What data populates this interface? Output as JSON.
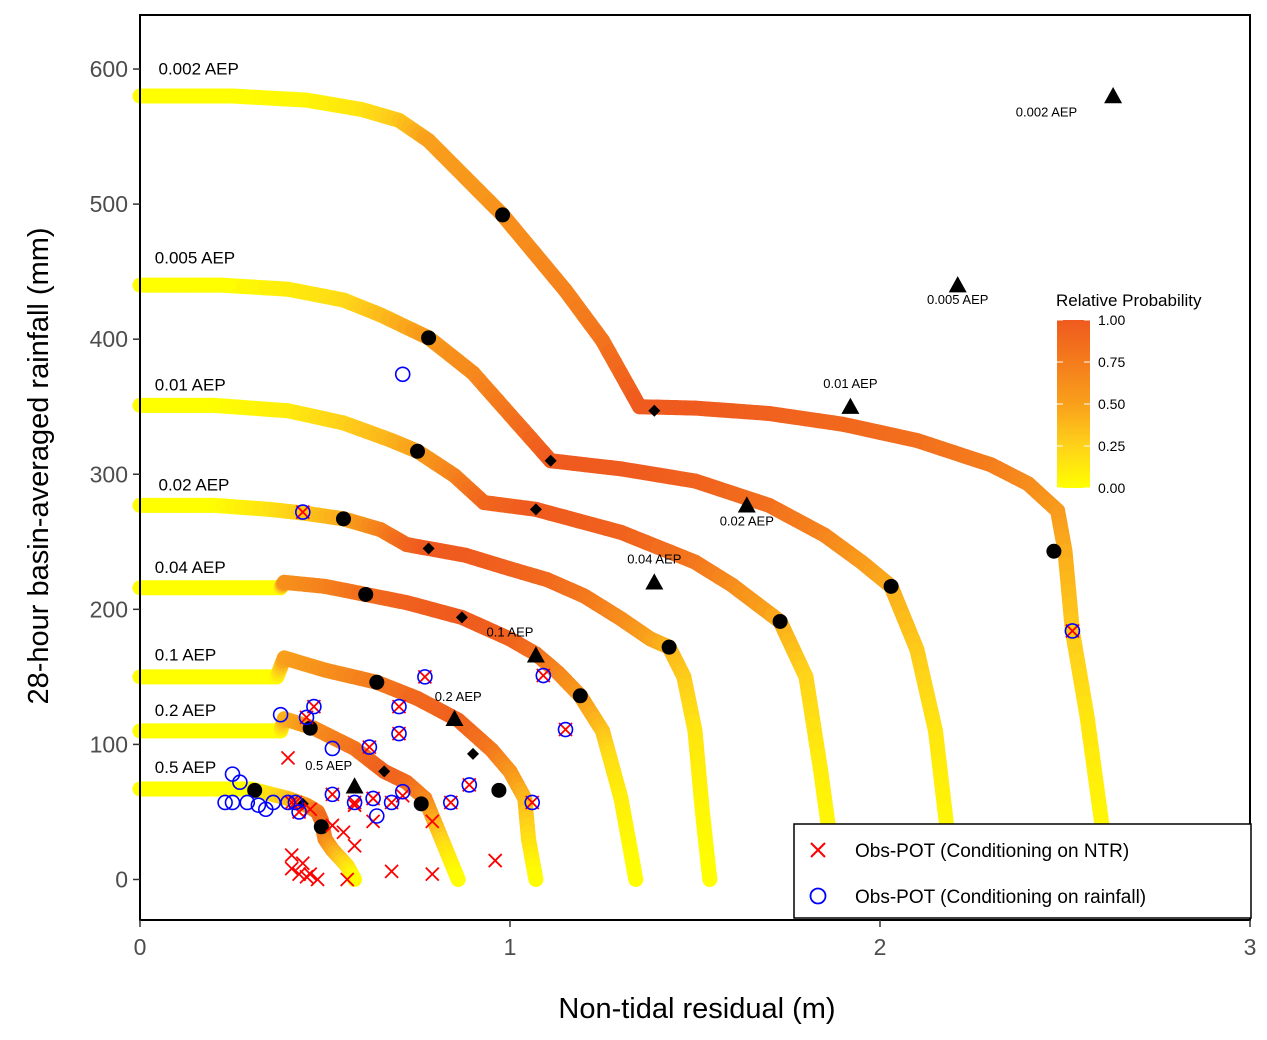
{
  "chart_data": {
    "type": "scatter",
    "xlabel": "Non-tidal residual (m)",
    "ylabel": "28-hour basin-averaged rainfall (mm)",
    "xlim": [
      0,
      3
    ],
    "ylim": [
      -30,
      640
    ],
    "xticks": [
      0,
      1,
      2,
      3
    ],
    "xtick_labels": [
      "0",
      "1",
      "2",
      "3"
    ],
    "yticks": [
      0,
      100,
      200,
      300,
      400,
      500,
      600
    ],
    "ytick_labels": [
      "0",
      "100",
      "200",
      "300",
      "400",
      "500",
      "600"
    ],
    "grid": false,
    "colorbar": {
      "title": "Relative Probability",
      "ticks": [
        0,
        0.25,
        0.5,
        0.75,
        1.0
      ],
      "tick_labels": [
        "0.00",
        "0.25",
        "0.50",
        "0.75",
        "1.00"
      ],
      "colors": [
        "#ffff00",
        "#ffd21a",
        "#f9a01b",
        "#f47c1c",
        "#ef5a1e"
      ]
    },
    "curves": [
      {
        "label": "0.002 AEP",
        "label_pos": [
          0.05,
          596
        ],
        "points": [
          [
            0,
            580
          ],
          [
            0.25,
            580
          ],
          [
            0.45,
            577
          ],
          [
            0.6,
            570
          ],
          [
            0.7,
            562
          ],
          [
            0.78,
            547
          ],
          [
            0.98,
            492
          ],
          [
            1.15,
            436
          ],
          [
            1.25,
            399
          ],
          [
            1.35,
            350
          ],
          [
            1.5,
            349
          ],
          [
            1.7,
            345
          ],
          [
            1.9,
            337
          ],
          [
            2.1,
            325
          ],
          [
            2.3,
            307
          ],
          [
            2.4,
            293
          ],
          [
            2.48,
            273
          ],
          [
            2.5,
            243
          ],
          [
            2.52,
            184
          ],
          [
            2.56,
            120
          ],
          [
            2.6,
            40
          ],
          [
            2.62,
            0
          ]
        ],
        "probs": [
          0,
          0,
          0.05,
          0.15,
          0.3,
          0.5,
          0.6,
          0.7,
          0.8,
          1,
          1,
          0.95,
          0.9,
          0.85,
          0.75,
          0.65,
          0.55,
          0.45,
          0.3,
          0.15,
          0.05,
          0
        ]
      },
      {
        "label": "0.005 AEP",
        "label_pos": [
          0.04,
          456
        ],
        "points": [
          [
            0,
            440
          ],
          [
            0.22,
            440
          ],
          [
            0.4,
            437
          ],
          [
            0.55,
            429
          ],
          [
            0.65,
            418
          ],
          [
            0.78,
            401
          ],
          [
            0.9,
            375
          ],
          [
            1.0,
            344
          ],
          [
            1.11,
            310
          ],
          [
            1.3,
            304
          ],
          [
            1.5,
            295
          ],
          [
            1.7,
            277
          ],
          [
            1.85,
            255
          ],
          [
            1.95,
            235
          ],
          [
            2.03,
            217
          ],
          [
            2.1,
            170
          ],
          [
            2.15,
            110
          ],
          [
            2.18,
            40
          ],
          [
            2.2,
            10
          ]
        ],
        "probs": [
          0,
          0,
          0.1,
          0.2,
          0.35,
          0.55,
          0.65,
          0.8,
          1,
          1,
          0.95,
          0.85,
          0.7,
          0.55,
          0.45,
          0.3,
          0.15,
          0.05,
          0
        ]
      },
      {
        "label": "0.01 AEP",
        "label_pos": [
          0.04,
          362
        ],
        "points": [
          [
            0,
            351
          ],
          [
            0.2,
            351
          ],
          [
            0.4,
            347
          ],
          [
            0.55,
            338
          ],
          [
            0.68,
            325
          ],
          [
            0.75,
            317
          ],
          [
            0.85,
            299
          ],
          [
            0.93,
            279
          ],
          [
            1.07,
            274
          ],
          [
            1.3,
            257
          ],
          [
            1.5,
            235
          ],
          [
            1.6,
            218
          ],
          [
            1.73,
            191
          ],
          [
            1.8,
            150
          ],
          [
            1.84,
            80
          ],
          [
            1.87,
            20
          ],
          [
            1.88,
            10
          ]
        ],
        "probs": [
          0,
          0,
          0.1,
          0.25,
          0.4,
          0.5,
          0.7,
          0.9,
          1,
          0.95,
          0.8,
          0.65,
          0.45,
          0.25,
          0.1,
          0.02,
          0
        ]
      },
      {
        "label": "0.02 AEP",
        "label_pos": [
          0.05,
          288
        ],
        "points": [
          [
            0,
            277
          ],
          [
            0.2,
            277
          ],
          [
            0.35,
            274
          ],
          [
            0.45,
            271
          ],
          [
            0.55,
            267
          ],
          [
            0.65,
            259
          ],
          [
            0.72,
            248
          ],
          [
            0.78,
            245
          ],
          [
            0.88,
            240
          ],
          [
            1.0,
            230
          ],
          [
            1.1,
            222
          ],
          [
            1.2,
            210
          ],
          [
            1.3,
            193
          ],
          [
            1.38,
            178
          ],
          [
            1.43,
            172
          ],
          [
            1.47,
            150
          ],
          [
            1.5,
            110
          ],
          [
            1.52,
            50
          ],
          [
            1.54,
            0
          ]
        ],
        "probs": [
          0,
          0,
          0.15,
          0.3,
          0.45,
          0.7,
          0.9,
          1,
          1,
          0.95,
          0.9,
          0.8,
          0.65,
          0.5,
          0.4,
          0.3,
          0.15,
          0.05,
          0
        ]
      },
      {
        "label": "0.04 AEP",
        "label_pos": [
          0.04,
          227
        ],
        "points": [
          [
            0,
            216
          ],
          [
            0.38,
            216
          ],
          [
            0.39,
            220
          ],
          [
            0.5,
            217
          ],
          [
            0.61,
            211
          ],
          [
            0.72,
            205
          ],
          [
            0.87,
            194
          ],
          [
            1.0,
            178
          ],
          [
            1.07,
            167
          ],
          [
            1.13,
            153
          ],
          [
            1.19,
            136
          ],
          [
            1.25,
            110
          ],
          [
            1.27,
            90
          ],
          [
            1.3,
            60
          ],
          [
            1.34,
            0
          ]
        ],
        "probs": [
          0,
          0,
          0.6,
          0.7,
          0.85,
          0.95,
          1,
          0.95,
          0.85,
          0.7,
          0.55,
          0.35,
          0.2,
          0.1,
          0
        ]
      },
      {
        "label": "0.1 AEP",
        "label_pos": [
          0.04,
          162
        ],
        "points": [
          [
            0,
            150
          ],
          [
            0.37,
            150
          ],
          [
            0.39,
            164
          ],
          [
            0.5,
            155
          ],
          [
            0.64,
            146
          ],
          [
            0.75,
            134
          ],
          [
            0.86,
            118
          ],
          [
            0.95,
            96
          ],
          [
            1.0,
            80
          ],
          [
            1.04,
            60
          ],
          [
            1.05,
            30
          ],
          [
            1.07,
            0
          ]
        ],
        "probs": [
          0,
          0,
          0.5,
          0.6,
          0.75,
          0.9,
          0.95,
          0.8,
          0.6,
          0.4,
          0.2,
          0
        ]
      },
      {
        "label": "0.2 AEP",
        "label_pos": [
          0.04,
          121
        ],
        "points": [
          [
            0,
            110
          ],
          [
            0.38,
            110
          ],
          [
            0.39,
            119
          ],
          [
            0.47,
            112
          ],
          [
            0.58,
            97
          ],
          [
            0.66,
            80
          ],
          [
            0.72,
            72
          ],
          [
            0.77,
            60
          ],
          [
            0.8,
            40
          ],
          [
            0.83,
            20
          ],
          [
            0.86,
            0
          ]
        ],
        "probs": [
          0,
          0,
          0.4,
          0.6,
          0.8,
          0.95,
          0.9,
          0.7,
          0.4,
          0.15,
          0
        ]
      },
      {
        "label": "0.5 AEP",
        "label_pos": [
          0.04,
          79
        ],
        "points": [
          [
            0,
            67
          ],
          [
            0.3,
            67
          ],
          [
            0.4,
            60
          ],
          [
            0.45,
            55
          ],
          [
            0.48,
            50
          ],
          [
            0.49,
            44
          ],
          [
            0.5,
            30
          ],
          [
            0.52,
            22
          ],
          [
            0.56,
            10
          ],
          [
            0.58,
            0
          ]
        ],
        "probs": [
          0,
          0,
          0.3,
          0.55,
          0.75,
          0.9,
          0.7,
          0.5,
          0.2,
          0
        ]
      }
    ],
    "bulge_dots": [
      [
        0,
        580
      ],
      [
        0.04,
        580
      ],
      [
        0.09,
        580
      ],
      [
        0.14,
        580
      ],
      [
        0.19,
        580
      ],
      [
        0.24,
        580
      ],
      [
        0,
        440
      ],
      [
        0.03,
        440
      ],
      [
        0.06,
        440
      ],
      [
        0.09,
        440
      ],
      [
        0.12,
        440
      ],
      [
        0.15,
        440
      ],
      [
        0.18,
        440
      ],
      [
        0.21,
        440
      ],
      [
        0.24,
        440
      ]
    ],
    "circles_black": [
      [
        0.98,
        492
      ],
      [
        0.78,
        401
      ],
      [
        0.75,
        317
      ],
      [
        0.55,
        267
      ],
      [
        0.61,
        211
      ],
      [
        0.64,
        146
      ],
      [
        0.46,
        112
      ],
      [
        0.31,
        66
      ],
      [
        0.76,
        56
      ],
      [
        0.49,
        39
      ],
      [
        0.97,
        66
      ],
      [
        1.19,
        136
      ],
      [
        1.43,
        172
      ],
      [
        1.73,
        191
      ],
      [
        2.03,
        217
      ],
      [
        2.47,
        243
      ]
    ],
    "diamonds": [
      [
        1.39,
        347
      ],
      [
        1.11,
        310
      ],
      [
        1.07,
        274
      ],
      [
        0.78,
        245
      ],
      [
        0.87,
        194
      ],
      [
        0.9,
        93
      ],
      [
        0.66,
        80
      ],
      [
        0.44,
        56
      ]
    ],
    "triangles": [
      {
        "x": 2.63,
        "y": 580,
        "label": "0.002 AEP",
        "lx": 2.45,
        "ly": 565
      },
      {
        "x": 2.21,
        "y": 440,
        "label": "0.005 AEP",
        "lx": 2.21,
        "ly": 426
      },
      {
        "x": 1.92,
        "y": 350,
        "label": "0.01 AEP",
        "lx": 1.92,
        "ly": 364
      },
      {
        "x": 1.64,
        "y": 277,
        "label": "0.02 AEP",
        "lx": 1.64,
        "ly": 262
      },
      {
        "x": 1.39,
        "y": 220,
        "label": "0.04 AEP",
        "lx": 1.39,
        "ly": 234
      },
      {
        "x": 1.07,
        "y": 166,
        "label": "0.1 AEP",
        "lx": 1.0,
        "ly": 180
      },
      {
        "x": 0.85,
        "y": 119,
        "label": "0.2 AEP",
        "lx": 0.86,
        "ly": 132
      },
      {
        "x": 0.58,
        "y": 69,
        "label": "0.5 AEP",
        "lx": 0.51,
        "ly": 81
      }
    ],
    "obs_ntr_x": [
      [
        0.44,
        272
      ],
      [
        0.77,
        150
      ],
      [
        0.47,
        128
      ],
      [
        0.45,
        120
      ],
      [
        0.7,
        128
      ],
      [
        1.09,
        151
      ],
      [
        1.15,
        111
      ],
      [
        0.7,
        108
      ],
      [
        0.62,
        98
      ],
      [
        0.52,
        63
      ],
      [
        0.89,
        70
      ],
      [
        0.84,
        57
      ],
      [
        1.06,
        57
      ],
      [
        0.58,
        57
      ],
      [
        0.63,
        60
      ],
      [
        0.71,
        62
      ],
      [
        0.68,
        57
      ],
      [
        0.43,
        50
      ],
      [
        0.42,
        57
      ],
      [
        0.4,
        90
      ],
      [
        0.46,
        52
      ],
      [
        0.41,
        57
      ],
      [
        0.58,
        55
      ],
      [
        0.79,
        43
      ],
      [
        0.52,
        40
      ],
      [
        0.55,
        35
      ],
      [
        0.58,
        25
      ],
      [
        0.63,
        43
      ],
      [
        0.41,
        18
      ],
      [
        0.44,
        12
      ],
      [
        0.41,
        8
      ],
      [
        0.43,
        4
      ],
      [
        0.45,
        2
      ],
      [
        0.46,
        4
      ],
      [
        0.48,
        0
      ],
      [
        0.56,
        0
      ],
      [
        0.68,
        6
      ],
      [
        0.79,
        4
      ],
      [
        0.96,
        14
      ],
      [
        2.52,
        184
      ]
    ],
    "obs_rain_o": [
      [
        0.44,
        272
      ],
      [
        0.71,
        374
      ],
      [
        0.77,
        150
      ],
      [
        0.47,
        128
      ],
      [
        0.45,
        120
      ],
      [
        0.38,
        122
      ],
      [
        0.7,
        128
      ],
      [
        1.09,
        151
      ],
      [
        1.15,
        111
      ],
      [
        0.7,
        108
      ],
      [
        0.62,
        98
      ],
      [
        0.52,
        97
      ],
      [
        0.52,
        63
      ],
      [
        0.89,
        70
      ],
      [
        0.84,
        57
      ],
      [
        1.06,
        57
      ],
      [
        0.58,
        57
      ],
      [
        0.63,
        60
      ],
      [
        0.71,
        65
      ],
      [
        0.68,
        57
      ],
      [
        0.64,
        47
      ],
      [
        0.43,
        50
      ],
      [
        0.42,
        57
      ],
      [
        0.4,
        57
      ],
      [
        0.25,
        78
      ],
      [
        0.27,
        72
      ],
      [
        0.23,
        57
      ],
      [
        0.25,
        57
      ],
      [
        0.29,
        57
      ],
      [
        0.32,
        55
      ],
      [
        0.34,
        52
      ],
      [
        0.36,
        57
      ],
      [
        2.52,
        184
      ]
    ],
    "legend": [
      {
        "symbol": "x",
        "label": "Obs-POT (Conditioning on NTR)"
      },
      {
        "symbol": "o",
        "label": "Obs-POT (Conditioning on rainfall)"
      }
    ]
  }
}
